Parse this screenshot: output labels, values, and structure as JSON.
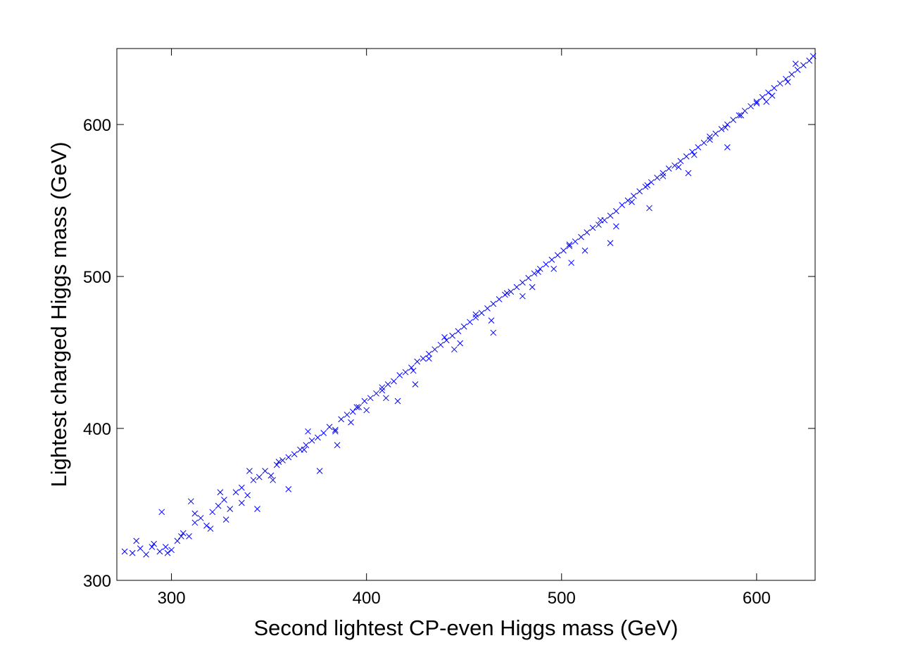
{
  "chart_data": {
    "type": "scatter",
    "title": "",
    "xlabel": "Second lightest CP-even Higgs mass (GeV)",
    "ylabel": "Lightest charged Higgs mass (GeV)",
    "xlim": [
      272,
      630
    ],
    "ylim": [
      300,
      650
    ],
    "xticks": [
      "300",
      "400",
      "500",
      "600"
    ],
    "yticks": [
      "300",
      "400",
      "500",
      "600"
    ],
    "xtick_values": [
      300,
      400,
      500,
      600
    ],
    "ytick_values": [
      300,
      400,
      500,
      600
    ],
    "grid": false,
    "legend": null,
    "marker": "x",
    "marker_color": "#0000ff",
    "series": [
      {
        "x": [
          276,
          280,
          284,
          287,
          291,
          294,
          297,
          300,
          303,
          306,
          309,
          312,
          315,
          318,
          321,
          324,
          327,
          330,
          333,
          336,
          339,
          342,
          345,
          348,
          351,
          354,
          357,
          360,
          363,
          366,
          369,
          372,
          375,
          378,
          381,
          384,
          387,
          390,
          393,
          396,
          399,
          402,
          405,
          408,
          411,
          414,
          417,
          420,
          423,
          426,
          429,
          432,
          435,
          438,
          441,
          444,
          447,
          450,
          453,
          456,
          459,
          462,
          465,
          468,
          471,
          474,
          477,
          480,
          483,
          486,
          489,
          492,
          495,
          498,
          501,
          504,
          507,
          510,
          513,
          516,
          519,
          522,
          525,
          528,
          531,
          534,
          537,
          540,
          543,
          546,
          549,
          552,
          555,
          558,
          561,
          564,
          567,
          570,
          573,
          576,
          579,
          582,
          585,
          588,
          591,
          594,
          597,
          600,
          603,
          606,
          609,
          612,
          615,
          618,
          621,
          624,
          627,
          629,
          282,
          290,
          298,
          305,
          312,
          320,
          328,
          336,
          344,
          352,
          360,
          368,
          376,
          384,
          392,
          400,
          408,
          416,
          424,
          432,
          440,
          448,
          456,
          464,
          472,
          480,
          488,
          496,
          504,
          512,
          520,
          528,
          536,
          544,
          552,
          560,
          568,
          576,
          584,
          592,
          600,
          608,
          616,
          295,
          310,
          325,
          340,
          355,
          370,
          385,
          395,
          410,
          425,
          445,
          465,
          485,
          505,
          525,
          545,
          565,
          585,
          605,
          620
        ],
        "y": [
          319,
          318,
          321,
          317,
          324,
          319,
          322,
          320,
          326,
          331,
          329,
          338,
          341,
          336,
          345,
          349,
          353,
          347,
          358,
          361,
          356,
          366,
          368,
          372,
          369,
          376,
          379,
          381,
          383,
          386,
          389,
          392,
          394,
          397,
          401,
          399,
          406,
          409,
          411,
          414,
          418,
          420,
          423,
          427,
          429,
          431,
          435,
          437,
          440,
          444,
          446,
          449,
          452,
          455,
          458,
          461,
          464,
          467,
          470,
          473,
          476,
          479,
          482,
          485,
          488,
          490,
          493,
          496,
          499,
          502,
          505,
          508,
          511,
          514,
          517,
          520,
          523,
          526,
          529,
          532,
          534,
          537,
          540,
          543,
          547,
          550,
          553,
          556,
          559,
          562,
          565,
          568,
          571,
          573,
          576,
          579,
          582,
          585,
          588,
          590,
          594,
          597,
          600,
          603,
          606,
          609,
          612,
          615,
          618,
          621,
          624,
          627,
          630,
          633,
          636,
          639,
          642,
          645,
          326,
          322,
          318,
          329,
          344,
          334,
          340,
          351,
          347,
          366,
          360,
          386,
          372,
          398,
          404,
          412,
          425,
          418,
          438,
          446,
          460,
          456,
          475,
          471,
          489,
          487,
          503,
          505,
          521,
          517,
          537,
          533,
          549,
          560,
          566,
          572,
          580,
          592,
          598,
          606,
          614,
          619,
          628,
          345,
          352,
          358,
          372,
          378,
          398,
          389,
          414,
          420,
          429,
          452,
          463,
          493,
          509,
          522,
          545,
          568,
          585,
          615,
          640
        ]
      }
    ]
  }
}
